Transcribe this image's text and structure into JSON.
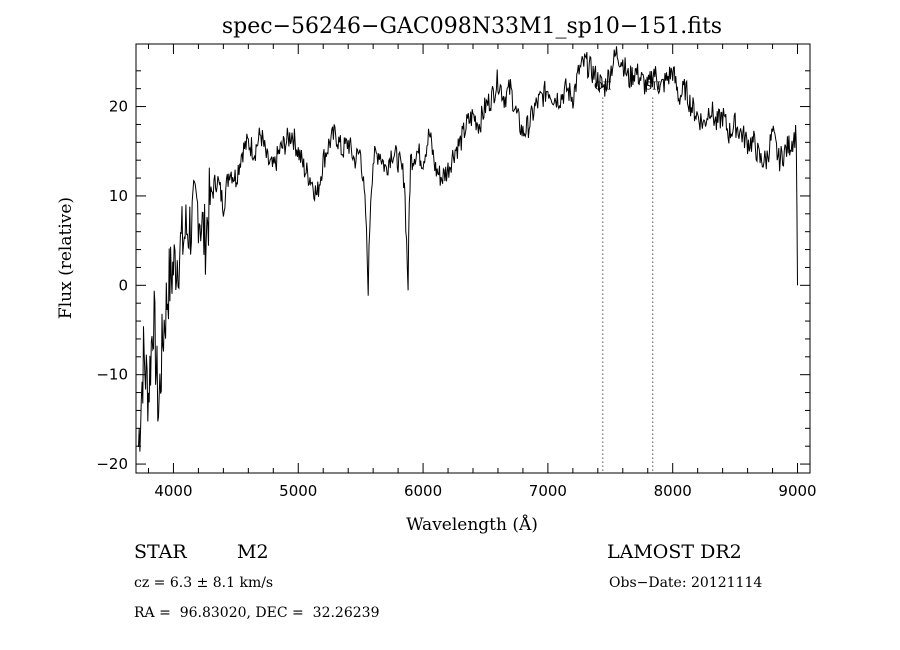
{
  "chart_data": {
    "type": "line",
    "title": "spec−56246−GAC098N33M1_sp10−151.fits",
    "xlabel": "Wavelength (Å)",
    "ylabel": "Flux (relative)",
    "xlim": [
      3700,
      9100
    ],
    "ylim": [
      -21,
      27
    ],
    "xticks": [
      4000,
      5000,
      6000,
      7000,
      8000,
      9000
    ],
    "xtick_labels": [
      "4000",
      "5000",
      "6000",
      "7000",
      "8000",
      "9000"
    ],
    "yticks": [
      -20,
      -10,
      0,
      10,
      20
    ],
    "ytick_labels": [
      "−20",
      "−10",
      "0",
      "10",
      "20"
    ],
    "grid": false,
    "series": [
      {
        "x": [
          3720,
          3760,
          3800,
          3840,
          3880,
          3920,
          3960,
          4000,
          4050,
          4100,
          4150,
          4200,
          4250,
          4300,
          4350,
          4400,
          4450,
          4500,
          4550,
          4600,
          4650,
          4700,
          4750,
          4800,
          4850,
          4900,
          4950,
          5000,
          5050,
          5100,
          5150,
          5200,
          5250,
          5300,
          5350,
          5400,
          5450,
          5500,
          5540,
          5560,
          5580,
          5600,
          5650,
          5700,
          5750,
          5800,
          5850,
          5880,
          5890,
          5900,
          5950,
          6000,
          6050,
          6100,
          6150,
          6200,
          6250,
          6300,
          6350,
          6400,
          6450,
          6500,
          6550,
          6600,
          6650,
          6700,
          6750,
          6800,
          6850,
          6900,
          6950,
          7000,
          7050,
          7100,
          7150,
          7200,
          7250,
          7300,
          7350,
          7400,
          7450,
          7500,
          7550,
          7600,
          7650,
          7700,
          7750,
          7800,
          7850,
          7900,
          7950,
          8000,
          8050,
          8100,
          8150,
          8200,
          8250,
          8300,
          8350,
          8400,
          8450,
          8500,
          8550,
          8600,
          8650,
          8700,
          8750,
          8800,
          8850,
          8900,
          8950,
          8990,
          9000
        ],
        "y": [
          -18,
          -8,
          -12,
          -3,
          -14,
          -5,
          0,
          2,
          4,
          6,
          7,
          9,
          5,
          10,
          12,
          9,
          13,
          12,
          15,
          16,
          15,
          17,
          14,
          13,
          15,
          16,
          17,
          15,
          13,
          12,
          10,
          14,
          16,
          17,
          15,
          16,
          14,
          15,
          8,
          0,
          10,
          14,
          15,
          13,
          15,
          14,
          12,
          0,
          9,
          14,
          15,
          14,
          17,
          13,
          12,
          13,
          15,
          16,
          18,
          19,
          18,
          20,
          21,
          23,
          21,
          22,
          19,
          17,
          18,
          20,
          21,
          22,
          21,
          21,
          22,
          21,
          24,
          25,
          24,
          23,
          22,
          24,
          26,
          25,
          23,
          24,
          23,
          22,
          24,
          22,
          23,
          24,
          21,
          22,
          20,
          19,
          18,
          20,
          18,
          19,
          17,
          18,
          17,
          16,
          16,
          14,
          14,
          17,
          14,
          15,
          16,
          17,
          0
        ]
      }
    ],
    "annotations": [
      {
        "label": "OII",
        "x": 7440
      },
      {
        "label": "SII",
        "x": 7840
      }
    ]
  },
  "footer": {
    "object_type": "STAR",
    "subclass": "M2",
    "survey": "LAMOST DR2",
    "cz": "cz = 6.3 ± 8.1 km/s",
    "obs_date": "Obs−Date: 20121114",
    "coords": "RA =  96.83020, DEC =  32.26239"
  }
}
